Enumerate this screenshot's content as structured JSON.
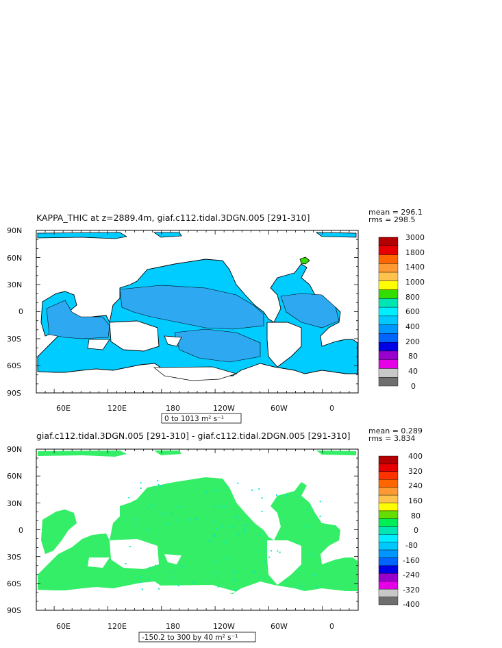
{
  "panels": [
    {
      "title": "KAPPA_THIC at z=2889.4m, giaf.c112.tidal.3DGN.005 [291-310]",
      "mean_label": "mean = 296.1",
      "rms_label": "rms = 298.5",
      "range_label": "0 to 1013 m² s⁻¹",
      "colorbar_labels": [
        "3000",
        "1800",
        "1400",
        "1000",
        "800",
        "600",
        "400",
        "200",
        "80",
        "40",
        "0"
      ],
      "colorbar_colors": [
        "#b30000",
        "#e60000",
        "#ff6600",
        "#ff9933",
        "#ffc34d",
        "#ffff00",
        "#33dd00",
        "#00e6b3",
        "#00eeff",
        "#00c8ff",
        "#0096ff",
        "#0064ff",
        "#0000e6",
        "#9900cc",
        "#e600e6",
        "#c8c8c8",
        "#6e6e6e"
      ],
      "ocean_color": "#00ccff",
      "deep_color": "#2ea8f0"
    },
    {
      "title": "giaf.c112.tidal.3DGN.005 [291-310] - giaf.c112.tidal.2DGN.005 [291-310]",
      "mean_label": "mean = 0.289",
      "rms_label": "rms = 3.834",
      "range_label": "-150.2 to 300 by 40 m² s⁻¹",
      "colorbar_labels": [
        "400",
        "320",
        "240",
        "160",
        "80",
        "0",
        "-80",
        "-160",
        "-240",
        "-320",
        "-400"
      ],
      "colorbar_colors": [
        "#b30000",
        "#e60000",
        "#ff3300",
        "#ff6600",
        "#ff9933",
        "#ffc34d",
        "#ffff00",
        "#66dd00",
        "#00ee55",
        "#00e6b3",
        "#00eeff",
        "#00c8ff",
        "#0096ff",
        "#0064ff",
        "#0000e6",
        "#9900cc",
        "#e600e6",
        "#c8c8c8",
        "#6e6e6e"
      ],
      "ocean_color": "#33ee66",
      "deep_color": "#2ad9a0"
    }
  ],
  "axes": {
    "y_ticks": [
      "90N",
      "60N",
      "30N",
      "0",
      "30S",
      "60S",
      "90S"
    ],
    "x_ticks": [
      "60E",
      "120E",
      "180",
      "120W",
      "60W",
      "0"
    ]
  },
  "chart_data": [
    {
      "type": "heatmap",
      "title": "KAPPA_THIC at z=2889.4m, giaf.c112.tidal.3DGN.005 [291-310]",
      "x_ticks": [
        "60E",
        "120E",
        "180",
        "120W",
        "60W",
        "0"
      ],
      "y_ticks": [
        "90N",
        "60N",
        "30N",
        "0",
        "30S",
        "60S",
        "90S"
      ],
      "colorbar": [
        3000,
        1800,
        1400,
        1000,
        800,
        600,
        400,
        200,
        80,
        40,
        0
      ],
      "mean": 296.1,
      "rms": 298.5,
      "range": "0 to 1013 m² s⁻¹"
    },
    {
      "type": "heatmap",
      "title": "giaf.c112.tidal.3DGN.005 [291-310] - giaf.c112.tidal.2DGN.005 [291-310]",
      "x_ticks": [
        "60E",
        "120E",
        "180",
        "120W",
        "60W",
        "0"
      ],
      "y_ticks": [
        "90N",
        "60N",
        "30N",
        "0",
        "30S",
        "60S",
        "90S"
      ],
      "colorbar": [
        400,
        320,
        240,
        160,
        80,
        0,
        -80,
        -160,
        -240,
        -320,
        -400
      ],
      "mean": 0.289,
      "rms": 3.834,
      "range": "-150.2 to 300 by 40 m² s⁻¹"
    }
  ]
}
